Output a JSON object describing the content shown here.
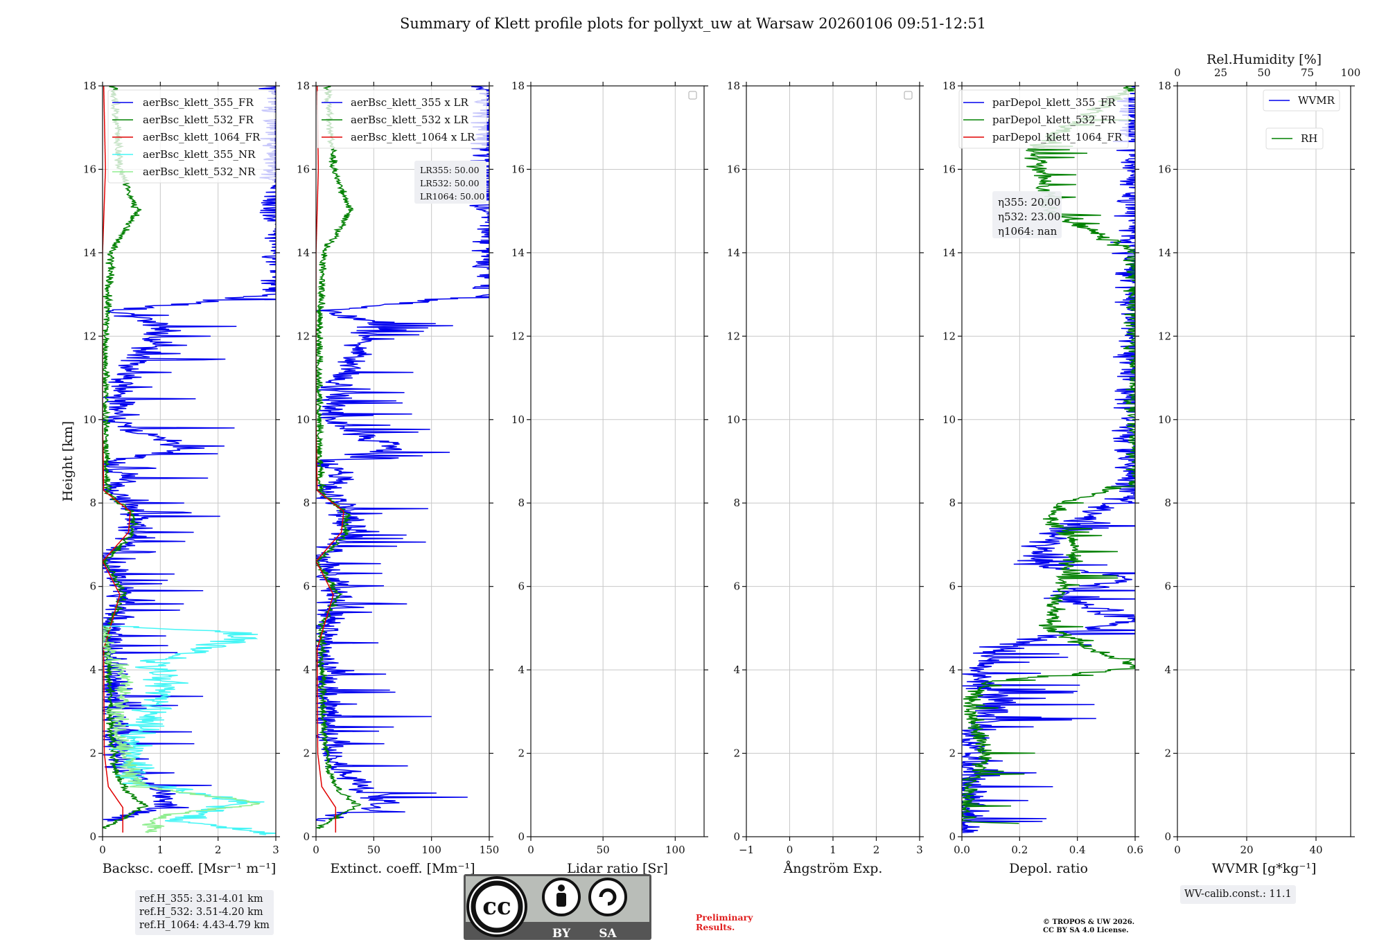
{
  "title": "Summary of Klett profile plots for pollyxt_uw at Warsaw 20260106 09:51-12:51",
  "ref_heights": [
    "ref.H_355: 3.31-4.01 km",
    "ref.H_532: 3.51-4.20 km",
    "ref.H_1064: 4.43-4.79 km"
  ],
  "wv_calib": "WV-calib.const.: 11.1",
  "preliminary": [
    "Preliminary",
    "Results."
  ],
  "copyright": [
    "© TROPOS & UW 2026.",
    "CC BY SA 4.0 License."
  ],
  "license_badge": {
    "cc": "cc",
    "by": "BY",
    "sa": "SA"
  },
  "colors": {
    "blue": "#0000ee",
    "green": "#008000",
    "red": "#e00000",
    "cyan": "#44f5f5",
    "lightgreen": "#90ee90"
  },
  "chart_data": [
    {
      "type": "line",
      "ylabel": "Height [km]",
      "xlabel": "Backsc. coeff. [Msr⁻¹ m⁻¹]",
      "xlim": [
        0,
        3
      ],
      "xticks": [
        0,
        1,
        2,
        3
      ],
      "ylim": [
        0,
        18
      ],
      "yticks": [
        0,
        2,
        4,
        6,
        8,
        10,
        12,
        14,
        16,
        18
      ],
      "legend": [
        "aerBsc_klett_355_FR",
        "aerBsc_klett_532_FR",
        "aerBsc_klett_1064_FR",
        "aerBsc_klett_355_NR",
        "aerBsc_klett_532_NR"
      ],
      "series": [
        {
          "name": "aerBsc_klett_355_FR",
          "color": "blue",
          "points": [
            [
              0.02,
              0.38
            ],
            [
              1.2,
              0.8
            ],
            [
              0.75,
              1.3
            ],
            [
              0.3,
              1.7
            ],
            [
              0.22,
              2.5
            ],
            [
              0.18,
              3.5
            ],
            [
              0.12,
              5
            ],
            [
              0.38,
              5.8
            ],
            [
              0.15,
              6.4
            ],
            [
              0.02,
              6.7
            ],
            [
              0.55,
              7.2
            ],
            [
              0.6,
              7.6
            ],
            [
              0.4,
              8
            ],
            [
              0.1,
              8.3
            ],
            [
              0.5,
              8.6
            ],
            [
              0.1,
              9
            ],
            [
              1.4,
              9.3
            ],
            [
              0.2,
              10
            ],
            [
              0.4,
              11
            ],
            [
              1.0,
              12.3
            ],
            [
              0.2,
              12.6
            ],
            [
              3,
              13
            ],
            [
              3,
              14.2
            ],
            [
              3,
              15.5
            ],
            [
              3,
              16.5
            ],
            [
              3,
              17.5
            ],
            [
              3,
              18
            ]
          ],
          "noise": 0.5,
          "spikes": true
        },
        {
          "name": "aerBsc_klett_532_FR",
          "color": "green",
          "points": [
            [
              0.02,
              0.2
            ],
            [
              0.75,
              0.75
            ],
            [
              0.4,
              1.1
            ],
            [
              0.22,
              1.6
            ],
            [
              0.15,
              2.5
            ],
            [
              0.12,
              3.5
            ],
            [
              0.08,
              5
            ],
            [
              0.38,
              5.8
            ],
            [
              0.12,
              6.4
            ],
            [
              0.02,
              6.6
            ],
            [
              0.5,
              7.2
            ],
            [
              0.55,
              7.7
            ],
            [
              0.3,
              8
            ],
            [
              0.08,
              8.3
            ],
            [
              0.05,
              10
            ],
            [
              0.05,
              12
            ],
            [
              0.15,
              14
            ],
            [
              0.6,
              15
            ],
            [
              0.3,
              16
            ],
            [
              0.2,
              18
            ]
          ],
          "noise": 0.12
        },
        {
          "name": "aerBsc_klett_1064_FR",
          "color": "red",
          "points": [
            [
              0.35,
              0.1
            ],
            [
              0.35,
              0.7
            ],
            [
              0.1,
              1.2
            ],
            [
              0.03,
              2
            ],
            [
              0.02,
              4.5
            ],
            [
              0.3,
              5.8
            ],
            [
              0.08,
              6.4
            ],
            [
              0.0,
              6.6
            ],
            [
              0.45,
              7.3
            ],
            [
              0.48,
              7.8
            ],
            [
              0.2,
              8.1
            ],
            [
              0.02,
              8.3
            ],
            [
              0.0,
              10
            ],
            [
              0.0,
              14
            ],
            [
              0.05,
              16
            ],
            [
              0.02,
              18
            ]
          ],
          "noise": 0.0
        },
        {
          "name": "aerBsc_klett_355_NR",
          "color": "cyan",
          "points": [
            [
              3,
              0.05
            ],
            [
              1.3,
              0.4
            ],
            [
              2.4,
              0.85
            ],
            [
              0.6,
              1.3
            ],
            [
              0.5,
              2
            ],
            [
              0.7,
              2.8
            ],
            [
              1.1,
              3.6
            ],
            [
              0.9,
              4.2
            ],
            [
              2.3,
              4.7
            ],
            [
              2.4,
              4.9
            ],
            [
              0.1,
              5.05
            ]
          ],
          "noise": 0.6
        },
        {
          "name": "aerBsc_klett_532_NR",
          "color": "lightgreen",
          "points": [
            [
              0.8,
              0.1
            ],
            [
              1.0,
              0.5
            ],
            [
              2.8,
              0.8
            ],
            [
              0.6,
              1.2
            ],
            [
              0.35,
              2
            ],
            [
              0.25,
              3
            ],
            [
              0.4,
              3.8
            ],
            [
              0.1,
              4.4
            ],
            [
              0.05,
              5
            ]
          ],
          "noise": 0.3
        }
      ]
    },
    {
      "type": "line",
      "xlabel": "Extinct. coeff. [Mm⁻¹]",
      "xlim": [
        0,
        150
      ],
      "xticks": [
        0,
        50,
        100,
        150
      ],
      "ylim": [
        0,
        18
      ],
      "yticks": [
        0,
        2,
        4,
        6,
        8,
        10,
        12,
        14,
        16,
        18
      ],
      "legend": [
        "aerBsc_klett_355 x LR",
        "aerBsc_klett_532 x LR",
        "aerBsc_klett_1064 x LR"
      ],
      "annotations": [
        "LR355: 50.00",
        "LR532: 50.00",
        "LR1064: 50.00"
      ],
      "series": [
        {
          "name": "aerBsc_klett_355 x LR",
          "color": "blue",
          "points": [
            [
              1,
              0.38
            ],
            [
              60,
              0.8
            ],
            [
              37,
              1.3
            ],
            [
              15,
              1.7
            ],
            [
              11,
              2.5
            ],
            [
              9,
              3.5
            ],
            [
              6,
              5
            ],
            [
              19,
              5.8
            ],
            [
              7,
              6.4
            ],
            [
              1,
              6.7
            ],
            [
              27,
              7.2
            ],
            [
              30,
              7.6
            ],
            [
              20,
              8
            ],
            [
              5,
              8.3
            ],
            [
              25,
              8.6
            ],
            [
              5,
              9
            ],
            [
              70,
              9.3
            ],
            [
              10,
              10
            ],
            [
              20,
              11
            ],
            [
              50,
              12.3
            ],
            [
              10,
              12.6
            ],
            [
              150,
              13
            ],
            [
              150,
              14.2
            ],
            [
              150,
              15.5
            ],
            [
              150,
              16.5
            ],
            [
              150,
              17.5
            ],
            [
              150,
              18
            ]
          ],
          "noise": 25,
          "spikes": true
        },
        {
          "name": "aerBsc_klett_532 x LR",
          "color": "green",
          "points": [
            [
              1,
              0.2
            ],
            [
              37,
              0.75
            ],
            [
              20,
              1.1
            ],
            [
              11,
              1.6
            ],
            [
              7,
              2.5
            ],
            [
              6,
              3.5
            ],
            [
              4,
              5
            ],
            [
              19,
              5.8
            ],
            [
              6,
              6.4
            ],
            [
              1,
              6.6
            ],
            [
              25,
              7.2
            ],
            [
              27,
              7.7
            ],
            [
              15,
              8
            ],
            [
              4,
              8.3
            ],
            [
              2.5,
              10
            ],
            [
              2.5,
              12
            ],
            [
              7,
              14
            ],
            [
              30,
              15
            ],
            [
              15,
              16
            ],
            [
              10,
              18
            ]
          ],
          "noise": 6
        },
        {
          "name": "aerBsc_klett_1064 x LR",
          "color": "red",
          "points": [
            [
              17,
              0.1
            ],
            [
              17,
              0.7
            ],
            [
              5,
              1.2
            ],
            [
              1.5,
              2
            ],
            [
              1,
              4.5
            ],
            [
              15,
              5.8
            ],
            [
              4,
              6.4
            ],
            [
              0,
              6.6
            ],
            [
              22,
              7.3
            ],
            [
              24,
              7.8
            ],
            [
              10,
              8.1
            ],
            [
              1,
              8.3
            ],
            [
              0,
              10
            ],
            [
              0,
              14
            ],
            [
              2,
              16
            ],
            [
              1,
              18
            ]
          ],
          "noise": 0
        }
      ]
    },
    {
      "type": "line",
      "xlabel": "Lidar ratio [Sr]",
      "xlim": [
        0,
        120
      ],
      "xticks": [
        0,
        50,
        100
      ],
      "ylim": [
        0,
        18
      ],
      "yticks": [
        0,
        2,
        4,
        6,
        8,
        10,
        12,
        14,
        16,
        18
      ],
      "series": []
    },
    {
      "type": "line",
      "xlabel": "Ångström Exp.",
      "xlim": [
        -1,
        3
      ],
      "xticks": [
        -1,
        0,
        1,
        2,
        3
      ],
      "ylim": [
        0,
        18
      ],
      "yticks": [
        0,
        2,
        4,
        6,
        8,
        10,
        12,
        14,
        16,
        18
      ],
      "series": []
    },
    {
      "type": "line",
      "xlabel": "Depol. ratio",
      "xlim": [
        0,
        0.6
      ],
      "xticks": [
        0.0,
        0.2,
        0.4,
        0.6
      ],
      "ylim": [
        0,
        18
      ],
      "yticks": [
        0,
        2,
        4,
        6,
        8,
        10,
        12,
        14,
        16,
        18
      ],
      "legend": [
        "parDepol_klett_355_FR",
        "parDepol_klett_532_FR",
        "parDepol_klett_1064_FR"
      ],
      "annotations": [
        "η355: 20.00",
        "η532: 23.00",
        "η1064: nan"
      ],
      "series": [
        {
          "name": "parDepol_klett_355_FR",
          "color": "blue",
          "points": [
            [
              0.01,
              0.1
            ],
            [
              0.01,
              1.2
            ],
            [
              0.03,
              2
            ],
            [
              0.05,
              2.6
            ],
            [
              0.12,
              3.2
            ],
            [
              0.04,
              4
            ],
            [
              0.15,
              4.6
            ],
            [
              0.6,
              5.2
            ],
            [
              0.3,
              5.8
            ],
            [
              0.6,
              6.2
            ],
            [
              0.25,
              6.5
            ],
            [
              0.3,
              7.2
            ],
            [
              0.4,
              7.6
            ],
            [
              0.6,
              8.3
            ],
            [
              0.6,
              18
            ]
          ],
          "noise": 0.12,
          "spikes": true
        },
        {
          "name": "parDepol_klett_532_FR",
          "color": "green",
          "points": [
            [
              0.2,
              0.32
            ],
            [
              0.01,
              0.35
            ],
            [
              0.02,
              1.2
            ],
            [
              0.05,
              1.5
            ],
            [
              0.08,
              2
            ],
            [
              0.05,
              2.6
            ],
            [
              0.03,
              3.2
            ],
            [
              0.07,
              3.7
            ],
            [
              0.6,
              4.05
            ],
            [
              0.3,
              5
            ],
            [
              0.35,
              6
            ],
            [
              0.4,
              7
            ],
            [
              0.3,
              7.7
            ],
            [
              0.35,
              8
            ],
            [
              0.6,
              8.5
            ],
            [
              0.6,
              14
            ],
            [
              0.3,
              15
            ],
            [
              0.25,
              16.5
            ],
            [
              0.6,
              18
            ]
          ],
          "noise": 0.06,
          "spikes": true
        }
      ]
    },
    {
      "type": "line",
      "xlabel": "WVMR [g*kg⁻¹]",
      "xlim": [
        0,
        50
      ],
      "xticks": [
        0,
        20,
        40
      ],
      "ylim": [
        0,
        18
      ],
      "yticks": [
        0,
        2,
        4,
        6,
        8,
        10,
        12,
        14,
        16,
        18
      ],
      "top_xlabel": "Rel.Humidity [%]",
      "top_xlim": [
        0,
        100
      ],
      "top_xticks": [
        0,
        25,
        50,
        75,
        100
      ],
      "legend": [
        "WVMR",
        "RH"
      ],
      "series": []
    }
  ]
}
